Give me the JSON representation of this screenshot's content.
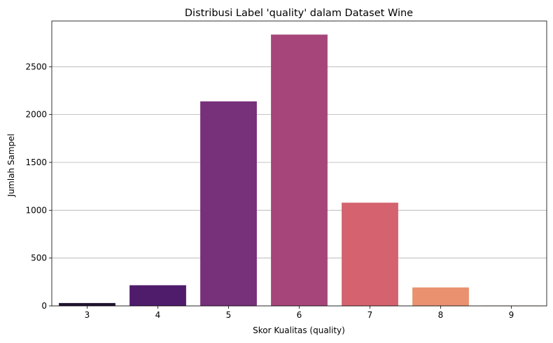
{
  "chart_data": {
    "type": "bar",
    "title": "Distribusi Label 'quality' dalam Dataset Wine",
    "xlabel": "Skor Kualitas (quality)",
    "ylabel": "Jumlah Sampel",
    "categories": [
      "3",
      "4",
      "5",
      "6",
      "7",
      "8",
      "9"
    ],
    "values": [
      30,
      216,
      2138,
      2836,
      1079,
      193,
      5
    ],
    "colors": [
      "#221331",
      "#4f1c6b",
      "#77307a",
      "#a6457a",
      "#d4636f",
      "#ea9170",
      "#f3c3a2"
    ],
    "yticks": [
      0,
      500,
      1000,
      1500,
      2000,
      2500
    ],
    "ylim": [
      0,
      2978
    ],
    "grid": "y"
  }
}
